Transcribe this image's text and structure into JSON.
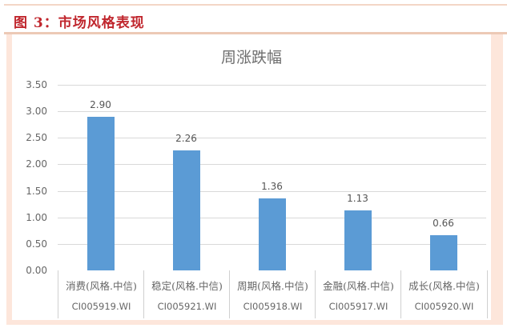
{
  "figure": {
    "label": "图 3：市场风格表现"
  },
  "chart_data": {
    "type": "bar",
    "title": "周涨跌幅",
    "categories": [
      "消费(风格.中信)",
      "稳定(风格.中信)",
      "周期(风格.中信)",
      "金融(风格.中信)",
      "成长(风格.中信)"
    ],
    "category_codes": [
      "CI005919.WI",
      "CI005921.WI",
      "CI005918.WI",
      "CI005917.WI",
      "CI005920.WI"
    ],
    "values": [
      2.9,
      2.26,
      1.36,
      1.13,
      0.66
    ],
    "value_labels": [
      "2.90",
      "2.26",
      "1.36",
      "1.13",
      "0.66"
    ],
    "xlabel": "",
    "ylabel": "",
    "ylim": [
      0,
      3.5
    ],
    "yticks": [
      "0.00",
      "0.50",
      "1.00",
      "1.50",
      "2.00",
      "2.50",
      "3.00",
      "3.50"
    ],
    "grid": true,
    "legend": "none",
    "bar_color": "#5b9bd5"
  }
}
